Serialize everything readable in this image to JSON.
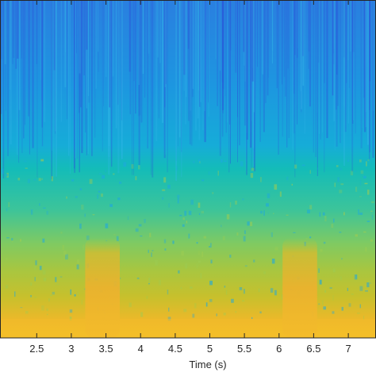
{
  "chart_data": {
    "type": "heatmap",
    "title": "",
    "xlabel": "Time (s)",
    "ylabel": "",
    "xlim": [
      1.97,
      7.4
    ],
    "xticks": [
      "2.5",
      "3",
      "3.5",
      "4",
      "4.5",
      "5",
      "5.5",
      "6",
      "6.5",
      "7"
    ],
    "xtick_values": [
      2.5,
      3,
      3.5,
      4,
      4.5,
      5,
      5.5,
      6,
      6.5,
      7
    ],
    "colormap": "parula",
    "grid": false,
    "events": [
      {
        "start": 3.2,
        "end": 3.7
      },
      {
        "start": 6.05,
        "end": 6.55
      }
    ]
  }
}
